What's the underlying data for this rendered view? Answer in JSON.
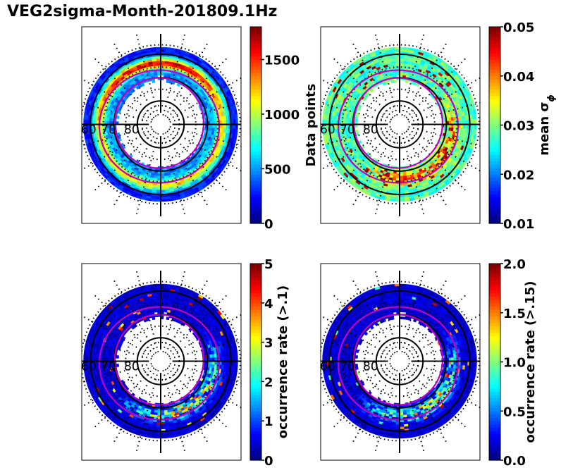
{
  "figure": {
    "title": "VEG2sigma-Month-201809.1Hz",
    "colormap": "jet",
    "colors": {
      "grid_circle": "#000000",
      "magenta_oval": "#c000c0",
      "background": "#ffffff"
    }
  },
  "chart_data": [
    {
      "type": "heatmap",
      "projection": "polar (magnetic latitude / MLT dial)",
      "panel": "top-left",
      "title": "",
      "colorbar": {
        "label": "Data points",
        "range": [
          0,
          1800
        ],
        "ticks": [
          0,
          500,
          1000,
          1500
        ],
        "tick_labels": [
          "0",
          "500",
          "1000",
          "1500"
        ]
      },
      "lat_labels": [
        "60",
        "70",
        "80"
      ],
      "lat_circles_deg": [
        60,
        70,
        80
      ],
      "data_ring_mlat": [
        57,
        72
      ],
      "description": "Annulus of counts; mostly 200-700, high band (1000-1800) along 62-65 MLAT on dayside/dawn-dusk; peak near noon"
    },
    {
      "type": "heatmap",
      "projection": "polar (magnetic latitude / MLT dial)",
      "panel": "top-right",
      "colorbar": {
        "label": "mean σϕ",
        "range": [
          0.01,
          0.05
        ],
        "ticks": [
          0.01,
          0.02,
          0.03,
          0.04,
          0.05
        ],
        "tick_labels": [
          "0.01",
          "0.02",
          "0.03",
          "0.04",
          "0.05"
        ]
      },
      "lat_labels": [
        "60",
        "70",
        "80"
      ],
      "lat_circles_deg": [
        60,
        70,
        80
      ],
      "data_ring_mlat": [
        57,
        72
      ],
      "description": "Background ~0.022-0.032; enhanced 0.04-0.05 in pre-midnight/post-midnight sector at 64-70 MLAT"
    },
    {
      "type": "heatmap",
      "projection": "polar (magnetic latitude / MLT dial)",
      "panel": "bottom-left",
      "colorbar": {
        "label": "occurrence rate (>.1)",
        "range": [
          0,
          5
        ],
        "ticks": [
          0,
          1,
          2,
          3,
          4,
          5
        ],
        "tick_labels": [
          "0",
          "1",
          "2",
          "3",
          "4",
          "5"
        ]
      },
      "lat_labels": [
        "60",
        "70",
        "80"
      ],
      "lat_circles_deg": [
        60,
        70,
        80
      ],
      "data_ring_mlat": [
        57,
        72
      ],
      "description": "Mostly 0-0.5; hotspots 3-5 in midnight-to-dawn sector at 64-70 MLAT"
    },
    {
      "type": "heatmap",
      "projection": "polar (magnetic latitude / MLT dial)",
      "panel": "bottom-right",
      "colorbar": {
        "label": "occurrence rate (>.15)",
        "range": [
          0.0,
          2.0
        ],
        "ticks": [
          0.0,
          0.5,
          1.0,
          1.5,
          2.0
        ],
        "tick_labels": [
          "0.0",
          "0.5",
          "1.0",
          "1.5",
          "2.0"
        ]
      },
      "lat_labels": [
        "60",
        "70",
        "80"
      ],
      "lat_circles_deg": [
        60,
        70,
        80
      ],
      "data_ring_mlat": [
        57,
        72
      ],
      "description": "Mostly 0-0.3; hotspots 1.5-2.0 in midnight-to-dawn sector at 64-70 MLAT"
    }
  ]
}
